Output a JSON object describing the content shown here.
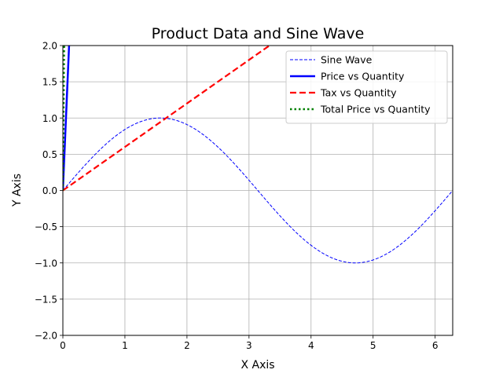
{
  "chart_data": {
    "type": "line",
    "title": "Product Data and Sine Wave",
    "xlabel": "X Axis",
    "ylabel": "Y Axis",
    "xlim": [
      0,
      6.283
    ],
    "ylim": [
      -2.0,
      2.0
    ],
    "x_ticks": [
      "0",
      "1",
      "2",
      "3",
      "4",
      "5",
      "6"
    ],
    "y_ticks": [
      "−2.0",
      "−1.5",
      "−1.0",
      "−0.5",
      "0.0",
      "0.5",
      "1.0",
      "1.5",
      "2.0"
    ],
    "grid": true,
    "legend_position": "top-right",
    "series": [
      {
        "name": "Sine Wave",
        "function": "sin",
        "x_range": [
          0,
          6.283
        ],
        "color": "#0000ff",
        "style": "dashed-thin"
      },
      {
        "name": "Price vs Quantity",
        "x": [
          0,
          0.1,
          0.2
        ],
        "y": [
          0,
          2,
          4
        ],
        "color": "#0000ff",
        "style": "solid"
      },
      {
        "name": "Tax vs Quantity",
        "x": [
          0,
          3.33,
          4
        ],
        "y": [
          0,
          2,
          2.4
        ],
        "color": "#ff0000",
        "style": "dashed"
      },
      {
        "name": "Total Price vs Quantity",
        "x": [
          0,
          0.02,
          0.04
        ],
        "y": [
          0,
          2,
          4
        ],
        "color": "#008000",
        "style": "dotted"
      }
    ]
  }
}
